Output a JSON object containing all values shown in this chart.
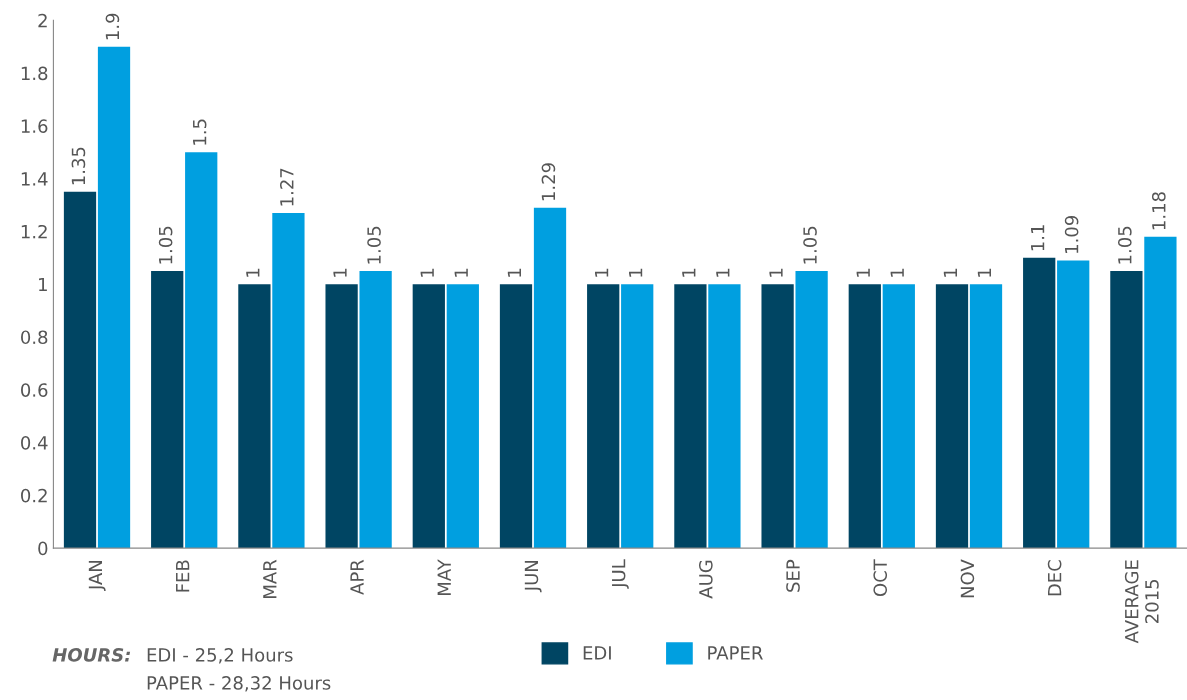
{
  "chart_data": {
    "type": "bar",
    "categories": [
      "JAN",
      "FEB",
      "MAR",
      "APR",
      "MAY",
      "JUN",
      "JUL",
      "AUG",
      "SEP",
      "OCT",
      "NOV",
      "DEC",
      "AVERAGE\n2015"
    ],
    "series": [
      {
        "name": "EDI",
        "color": "#004563",
        "values": [
          1.35,
          1.05,
          1,
          1,
          1,
          1,
          1,
          1,
          1,
          1,
          1,
          1.1,
          1.05
        ]
      },
      {
        "name": "PAPER",
        "color": "#009fe0",
        "values": [
          1.9,
          1.5,
          1.27,
          1.05,
          1,
          1.29,
          1,
          1,
          1.05,
          1,
          1,
          1.09,
          1.18
        ]
      }
    ],
    "ylim": [
      0,
      2
    ],
    "yticks": [
      0,
      0.2,
      0.4,
      0.6,
      0.8,
      1,
      1.2,
      1.4,
      1.6,
      1.8,
      2
    ],
    "data_labels": true,
    "grid": false,
    "legend": "bottom",
    "annotations": [
      "HOURS:",
      "EDI - 25,2 Hours",
      "PAPER - 28,32 Hours"
    ]
  }
}
